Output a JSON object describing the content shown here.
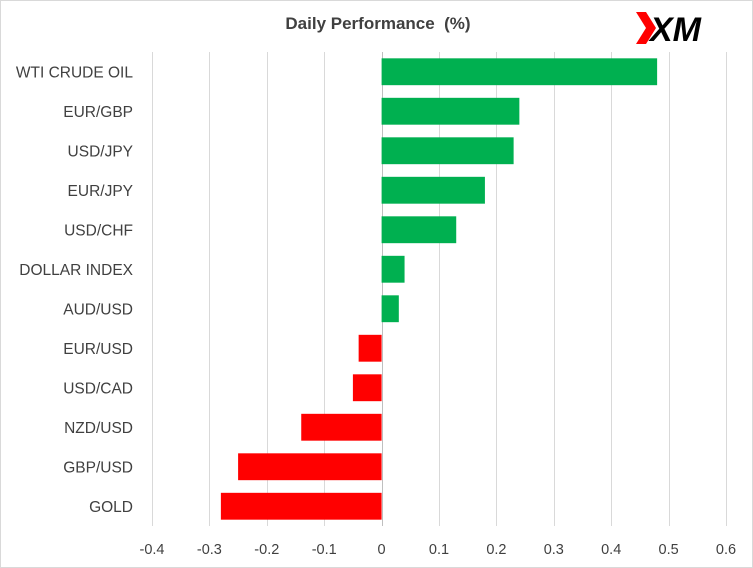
{
  "chart_data": {
    "type": "bar",
    "orientation": "horizontal",
    "title": "Daily Performance  (%)",
    "categories": [
      "WTI CRUDE OIL",
      "EUR/GBP",
      "USD/JPY",
      "EUR/JPY",
      "USD/CHF",
      "DOLLAR INDEX",
      "AUD/USD",
      "EUR/USD",
      "USD/CAD",
      "NZD/USD",
      "GBP/USD",
      "GOLD"
    ],
    "values": [
      0.48,
      0.24,
      0.23,
      0.18,
      0.13,
      0.04,
      0.03,
      -0.04,
      -0.05,
      -0.14,
      -0.25,
      -0.28
    ],
    "xlim": [
      -0.4,
      0.6
    ],
    "ticks": [
      "-0.4",
      "-0.3",
      "-0.2",
      "-0.1",
      "0",
      "0.1",
      "0.2",
      "0.3",
      "0.4",
      "0.5",
      "0.6"
    ],
    "xlabel": "",
    "ylabel": "",
    "grid": true,
    "legend": "none",
    "colors": {
      "positive": "#00b050",
      "negative": "#ff0000"
    }
  },
  "logo": {
    "text": "XM",
    "name": "xm-logo",
    "accent": "#ff0000"
  }
}
